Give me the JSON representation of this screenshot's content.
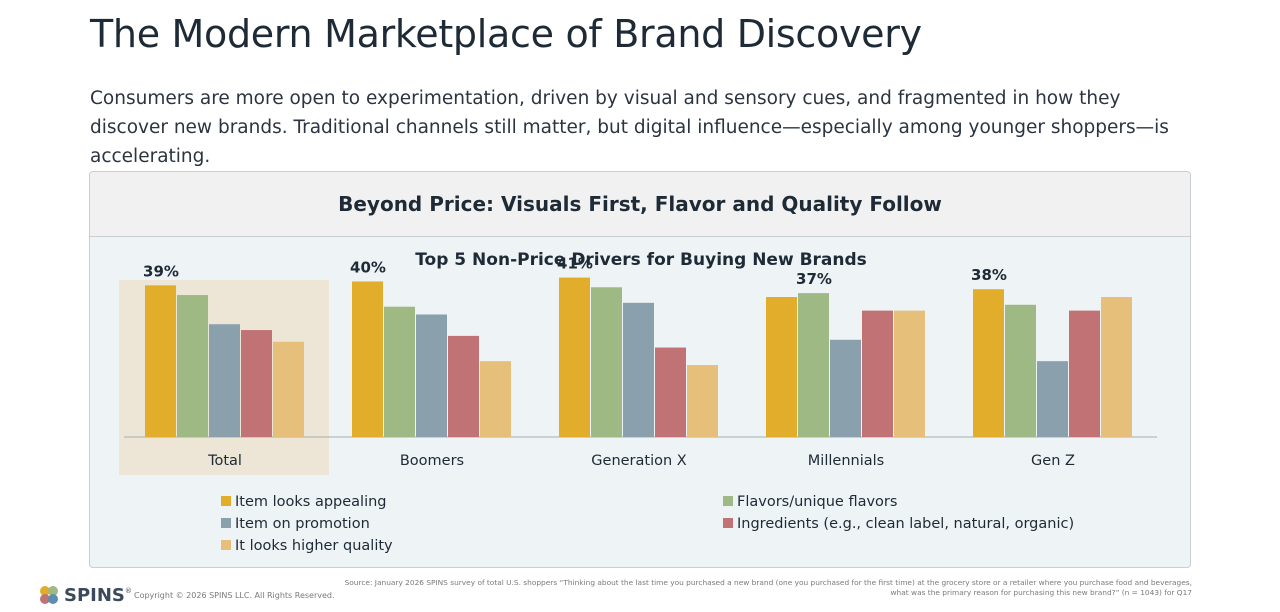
{
  "page": {
    "title": "The Modern Marketplace of Brand Discovery",
    "subtitle": "Consumers are more open to experimentation, driven by visual and sensory cues, and fragmented in how they discover new brands. Traditional channels still matter, but digital influence—especially among younger shoppers—is accelerating."
  },
  "panel": {
    "heading": "Beyond Price: Visuals First, Flavor and Quality Follow"
  },
  "footer": {
    "logo_text": "SPINS",
    "logo_tm": "®",
    "copyright": "Copyright © 2026 SPINS LLC. All Rights Reserved.",
    "source": "Source: January 2026 SPINS survey of total U.S. shoppers “Thinking about the last time you purchased a new brand (one you purchased for the first time) at the grocery store or a retailer where you purchase food and beverages, what was the primary reason for purchasing this new brand?”  (n = 1043) for Q17"
  },
  "chart_data": {
    "type": "bar",
    "title": "Top 5 Non-Price Drivers for Buying New Brands",
    "categories": [
      "Total",
      "Boomers",
      "Generation X",
      "Millennials",
      "Gen Z"
    ],
    "highlight_category": "Total",
    "ylim": [
      0,
      45
    ],
    "grid": false,
    "legend_position": "bottom",
    "series": [
      {
        "name": "Item looks appealing",
        "color": "#e2ad2a",
        "values": [
          39,
          40,
          41,
          36,
          38
        ]
      },
      {
        "name": "Flavors/unique flavors",
        "color": "#9eb983",
        "values": [
          36.5,
          33.5,
          38.5,
          37,
          34
        ]
      },
      {
        "name": "Item on promotion",
        "color": "#8aa0ac",
        "values": [
          29,
          31.5,
          34.5,
          25,
          19.5
        ]
      },
      {
        "name": "Ingredients (e.g., clean label, natural, organic)",
        "color": "#c07274",
        "values": [
          27.5,
          26,
          23,
          32.5,
          32.5
        ]
      },
      {
        "name": "It looks higher quality",
        "color": "#e6c07b",
        "values": [
          24.5,
          19.5,
          18.5,
          32.5,
          36
        ]
      }
    ],
    "data_labels": [
      {
        "category": "Total",
        "label": "39%"
      },
      {
        "category": "Boomers",
        "label": "40%"
      },
      {
        "category": "Generation X",
        "label": "41%"
      },
      {
        "category": "Millennials",
        "label": "37%"
      },
      {
        "category": "Gen Z",
        "label": "38%"
      }
    ]
  }
}
